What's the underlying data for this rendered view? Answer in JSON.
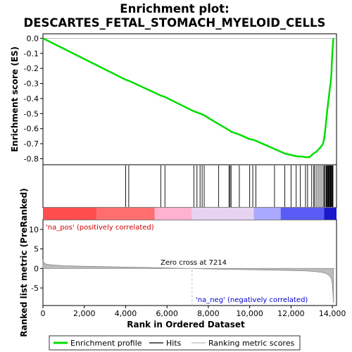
{
  "chart_data": {
    "type": "line",
    "title_line1": "Enrichment plot:",
    "title_line2": "DESCARTES_FETAL_STOMACH_MYELOID_CELLS",
    "xlabel": "Rank in Ordered Dataset",
    "ylabel_top": "Enrichment score (ES)",
    "ylabel_bottom": "Ranked list metric (PreRanked)",
    "xlim": [
      0,
      14200
    ],
    "es_ylim": [
      -0.84,
      0.03
    ],
    "metric_ylim": [
      -9.5,
      12.5
    ],
    "x_ticks": [
      0,
      2000,
      4000,
      6000,
      8000,
      10000,
      12000,
      14000
    ],
    "x_tick_labels": [
      "0",
      "2,000",
      "4,000",
      "6,000",
      "8,000",
      "10,000",
      "12,000",
      "14,000"
    ],
    "es_ticks": [
      0.0,
      -0.1,
      -0.2,
      -0.3,
      -0.4,
      -0.5,
      -0.6,
      -0.7,
      -0.8
    ],
    "es_tick_labels": [
      "0.0",
      "-0.1",
      "-0.2",
      "-0.3",
      "-0.4",
      "-0.5",
      "-0.6",
      "-0.7",
      "-0.8"
    ],
    "metric_ticks": [
      10,
      5,
      0,
      -5
    ],
    "metric_tick_labels": [
      "10",
      "5",
      "0",
      "-5"
    ],
    "series": [
      {
        "name": "Enrichment profile",
        "color": "#00dd00",
        "x": [
          0,
          4000,
          4200,
          5700,
          5900,
          7300,
          7500,
          7700,
          7800,
          8500,
          9000,
          9050,
          9100,
          9500,
          10000,
          10200,
          11200,
          11700,
          12000,
          12300,
          12500,
          12700,
          12900,
          13050,
          13150,
          13250,
          13350,
          13450,
          13550,
          13620,
          13680,
          13720,
          13760,
          13800,
          13840,
          13880,
          13920,
          13950,
          13980,
          14000,
          14020,
          14050
        ],
        "y": [
          0.0,
          -0.275,
          -0.285,
          -0.38,
          -0.39,
          -0.485,
          -0.495,
          -0.505,
          -0.512,
          -0.57,
          -0.61,
          -0.615,
          -0.62,
          -0.64,
          -0.67,
          -0.675,
          -0.735,
          -0.765,
          -0.775,
          -0.785,
          -0.785,
          -0.79,
          -0.79,
          -0.77,
          -0.76,
          -0.75,
          -0.735,
          -0.72,
          -0.7,
          -0.65,
          -0.58,
          -0.52,
          -0.47,
          -0.42,
          -0.38,
          -0.33,
          -0.29,
          -0.24,
          -0.15,
          -0.1,
          -0.05,
          0.0
        ]
      },
      {
        "name": "Hits",
        "color": "#000000",
        "x": [
          4000,
          4150,
          5700,
          5900,
          7300,
          7450,
          7600,
          7700,
          7800,
          8500,
          9000,
          9050,
          9100,
          9500,
          10000,
          10150,
          10300,
          11200,
          11700,
          12000,
          12250,
          12450,
          12700,
          12800,
          13000,
          13100,
          13150,
          13250,
          13350,
          13450,
          13550,
          13600,
          13650,
          13700,
          13720,
          13750,
          13780,
          13800,
          13820,
          13850,
          13870,
          13900,
          13920,
          13950,
          13980,
          14000,
          14030
        ]
      },
      {
        "name": "Ranking metric scores",
        "color": "#888888",
        "x": [
          0,
          50,
          150,
          400,
          1000,
          2000,
          3000,
          4000,
          5000,
          6000,
          7214,
          8000,
          9000,
          10000,
          11000,
          12000,
          12800,
          13200,
          13500,
          13700,
          13850,
          13950,
          14000,
          14030,
          14050
        ],
        "y": [
          2.2,
          1.4,
          1.1,
          0.9,
          0.7,
          0.55,
          0.45,
          0.35,
          0.25,
          0.12,
          0.0,
          -0.12,
          -0.22,
          -0.32,
          -0.42,
          -0.52,
          -0.65,
          -0.8,
          -1.0,
          -1.3,
          -1.8,
          -2.6,
          -4.0,
          -6.5,
          -8.8
        ]
      }
    ],
    "colorbar_stops": [
      {
        "x": 0,
        "color": "#ff4d4d"
      },
      {
        "x": 2600,
        "color": "#ff6e6e"
      },
      {
        "x": 5400,
        "color": "#ffb2cf"
      },
      {
        "x": 7200,
        "color": "#e6d3f2"
      },
      {
        "x": 10200,
        "color": "#a9a9ff"
      },
      {
        "x": 11500,
        "color": "#5a5af5"
      },
      {
        "x": 13600,
        "color": "#1a1acc"
      },
      {
        "x": 14200,
        "color": "#1a1acc"
      }
    ],
    "zero_cross_x": 7214,
    "annotations": {
      "pos": "'na_pos' (positively correlated)",
      "neg": "'na_neg' (negatively correlated)",
      "zero": "Zero cross at 7214"
    },
    "legend_position": "bottom",
    "legend": [
      "Enrichment profile",
      "Hits",
      "Ranking metric scores"
    ]
  }
}
